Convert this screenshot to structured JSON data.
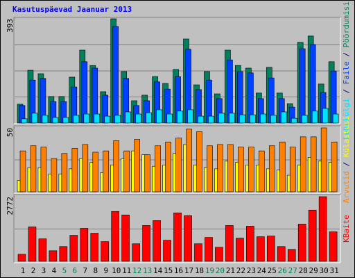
{
  "title": "Kasutuspäevad Jaanuar 2013",
  "categories": [
    "1",
    "2",
    "3",
    "4",
    "5",
    "6",
    "7",
    "8",
    "9",
    "10",
    "11",
    "12",
    "13",
    "14",
    "15",
    "16",
    "17",
    "18",
    "19",
    "20",
    "21",
    "22",
    "23",
    "24",
    "25",
    "26",
    "27",
    "28",
    "29",
    "30",
    "31"
  ],
  "category_colors": [
    "#000000",
    "#000000",
    "#000000",
    "#000000",
    "#00805c",
    "#00805c",
    "#000000",
    "#000000",
    "#000000",
    "#000000",
    "#000000",
    "#00805c",
    "#00805c",
    "#000000",
    "#000000",
    "#000000",
    "#000000",
    "#000000",
    "#00805c",
    "#00805c",
    "#000000",
    "#000000",
    "#000000",
    "#000000",
    "#000000",
    "#00805c",
    "#00805c",
    "#000000",
    "#000000",
    "#000000",
    "#000000"
  ],
  "legend_separator": "/",
  "chart_data": [
    {
      "type": "bar",
      "ylim": [
        0,
        393
      ],
      "yticks": [
        393
      ],
      "series": [
        {
          "name": "Lehekülgi",
          "color": "#00e0ff",
          "values": [
            16,
            37,
            29,
            21,
            21,
            29,
            34,
            34,
            26,
            29,
            42,
            34,
            39,
            50,
            34,
            45,
            50,
            26,
            26,
            37,
            37,
            31,
            31,
            34,
            29,
            42,
            18,
            29,
            45,
            55,
            34
          ]
        },
        {
          "name": "Faile",
          "color": "#0040ff",
          "values": [
            66,
            162,
            168,
            81,
            81,
            136,
            231,
            207,
            105,
            364,
            168,
            66,
            84,
            155,
            128,
            175,
            278,
            126,
            162,
            92,
            238,
            194,
            189,
            92,
            170,
            92,
            60,
            280,
            296,
            115,
            196
          ]
        },
        {
          "name": "Pöördumisi",
          "color": "#00805c",
          "values": [
            71,
            199,
            186,
            100,
            100,
            173,
            275,
            217,
            118,
            393,
            194,
            84,
            105,
            175,
            149,
            202,
            317,
            144,
            194,
            110,
            275,
            217,
            207,
            113,
            210,
            113,
            73,
            304,
            328,
            147,
            231
          ]
        }
      ]
    },
    {
      "type": "bar",
      "ylim": [
        0,
        50
      ],
      "yticks": [
        50
      ],
      "series": [
        {
          "name": "Arvutid",
          "color": "#ff8000",
          "values": [
            32,
            36,
            35,
            26,
            30,
            34,
            37,
            31,
            32,
            40,
            32,
            41,
            29,
            36,
            39,
            42,
            49,
            47,
            36,
            37,
            37,
            35,
            35,
            32,
            36,
            39,
            35,
            43,
            43,
            50,
            39
          ]
        },
        {
          "name": "Külastusi",
          "color": "#ffff00",
          "values": [
            9,
            19,
            19,
            14,
            14,
            18,
            26,
            23,
            15,
            21,
            26,
            32,
            29,
            20,
            21,
            30,
            37,
            21,
            19,
            18,
            24,
            23,
            21,
            21,
            18,
            17,
            13,
            21,
            27,
            24,
            23
          ]
        }
      ]
    },
    {
      "type": "bar",
      "ylim": [
        0,
        2772
      ],
      "yticks": [
        2772
      ],
      "series": [
        {
          "name": "KBaite",
          "color": "#ff0000",
          "values": [
            301,
            1477,
            964,
            452,
            633,
            1115,
            1416,
            1205,
            844,
            2139,
            1989,
            753,
            1537,
            1748,
            904,
            2079,
            1959,
            753,
            1025,
            603,
            1537,
            994,
            1507,
            1055,
            1085,
            633,
            512,
            1597,
            2199,
            2772,
            1266
          ]
        }
      ]
    }
  ]
}
